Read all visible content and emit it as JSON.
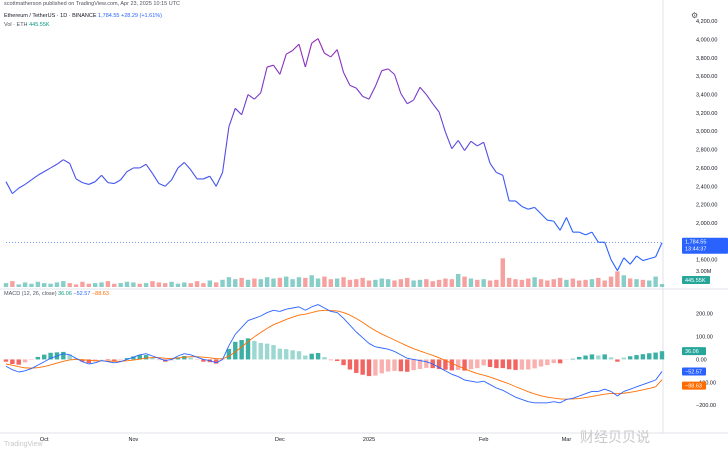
{
  "header": {
    "publisher": "scottmatherson published on TradingView.com, Apr 23, 2025 10:15 UTC",
    "symbol": "Ethereum / TetherUS · 1D · BINANCE",
    "last_price": "1,784.55",
    "change": "+28.29 (+1.61%)",
    "vol_label": "Vol · ETH",
    "vol_value": "445.55K",
    "macd_label": "MACD (12, 26, close)",
    "macd_hist": "36.06",
    "macd_line": "−52.57",
    "signal_line": "−88.63"
  },
  "badges": {
    "price": "1,784.55",
    "countdown": "13:44:37",
    "volume": "445.55K",
    "hist": "36.06",
    "macd": "−52.57",
    "signal": "−88.63",
    "vol_tick": "3.00M"
  },
  "watermark": "财经贝贝说",
  "logo_text": "TradingView",
  "colors": {
    "price_up": "#2962ff",
    "price_peak": "#9c27b0",
    "vol_up": "#26a69a",
    "vol_down": "#ef5350",
    "macd": "#2962ff",
    "signal": "#ff6d00",
    "hist_up": "#26a69a",
    "hist_down": "#ef5350"
  },
  "icons": {
    "settings": "gear-icon",
    "logo": "tradingview-logo-icon"
  },
  "chart_data": [
    {
      "type": "line",
      "title": "Ethereum / TetherUS · 1D · BINANCE",
      "x_labels": [
        "Oct",
        "Nov",
        "Dec",
        "2025",
        "Feb",
        "Mar"
      ],
      "y_ticks": [
        1600,
        1800,
        2000,
        2200,
        2400,
        2600,
        2800,
        3000,
        3200,
        3400,
        3600,
        3800,
        4000,
        4200
      ],
      "y_tick_labels": [
        "1,600.00",
        "1,800.00",
        "2,000.00",
        "2,200.00",
        "2,400.00",
        "2,600.00",
        "2,800.00",
        "3,000.00",
        "3,200.00",
        "3,400.00",
        "3,600.00",
        "3,800.00",
        "4,000.00",
        "4,200.00"
      ],
      "ylim": [
        1400,
        4300
      ],
      "close": [
        2450,
        2320,
        2380,
        2420,
        2470,
        2520,
        2560,
        2600,
        2640,
        2690,
        2650,
        2480,
        2440,
        2420,
        2450,
        2520,
        2440,
        2430,
        2470,
        2560,
        2600,
        2600,
        2640,
        2540,
        2430,
        2400,
        2470,
        2600,
        2660,
        2580,
        2480,
        2480,
        2510,
        2400,
        2550,
        3050,
        3250,
        3180,
        3400,
        3350,
        3420,
        3700,
        3720,
        3620,
        3840,
        3880,
        3950,
        3700,
        3960,
        4010,
        3850,
        3810,
        3890,
        3640,
        3500,
        3470,
        3380,
        3350,
        3490,
        3660,
        3680,
        3620,
        3410,
        3300,
        3340,
        3480,
        3400,
        3300,
        3210,
        2990,
        2810,
        2900,
        2790,
        2890,
        2840,
        2880,
        2650,
        2550,
        2520,
        2240,
        2240,
        2180,
        2150,
        2170,
        2100,
        2030,
        2020,
        1920,
        2060,
        1900,
        1900,
        1870,
        1900,
        1790,
        1790,
        1600,
        1480,
        1620,
        1550,
        1640,
        1590,
        1610,
        1630,
        1784.55
      ],
      "last_price": 1784.55
    },
    {
      "type": "bar",
      "title": "Vol · ETH",
      "y_tick_labels": [
        "3.00M"
      ],
      "last_value": "445.55K",
      "volume_m": [
        0.6,
        0.9,
        0.4,
        0.7,
        0.5,
        0.8,
        0.6,
        0.5,
        0.7,
        0.9,
        0.6,
        0.4,
        0.8,
        0.5,
        0.6,
        0.7,
        0.9,
        0.5,
        0.6,
        0.8,
        0.7,
        0.5,
        0.6,
        0.9,
        0.7,
        0.6,
        0.8,
        0.5,
        0.7,
        0.6,
        0.9,
        0.6,
        1.0,
        0.7,
        1.1,
        1.5,
        1.2,
        1.4,
        1.1,
        1.3,
        1.2,
        1.5,
        1.3,
        1.4,
        1.6,
        1.2,
        1.5,
        1.4,
        1.8,
        1.3,
        1.6,
        1.2,
        1.3,
        1.5,
        1.1,
        1.2,
        1.4,
        1.0,
        1.1,
        1.3,
        1.2,
        1.0,
        1.2,
        1.4,
        1.0,
        1.1,
        1.2,
        0.9,
        1.1,
        1.3,
        1.2,
        2.0,
        1.6,
        1.3,
        1.1,
        1.2,
        1.0,
        1.1,
        4.4,
        1.4,
        1.2,
        1.1,
        1.3,
        1.5,
        1.2,
        1.0,
        1.2,
        1.4,
        1.1,
        1.3,
        1.0,
        1.1,
        1.2,
        1.4,
        1.0,
        1.6,
        2.4,
        1.8,
        1.3,
        1.2,
        1.1,
        1.0,
        1.6,
        0.45
      ],
      "up": [
        1,
        0,
        1,
        1,
        1,
        1,
        1,
        1,
        1,
        1,
        0,
        0,
        0,
        0,
        1,
        1,
        0,
        0,
        1,
        1,
        1,
        0,
        1,
        0,
        0,
        0,
        1,
        1,
        1,
        0,
        0,
        0,
        1,
        0,
        1,
        1,
        1,
        0,
        1,
        0,
        1,
        1,
        1,
        0,
        1,
        1,
        1,
        0,
        1,
        1,
        0,
        0,
        1,
        0,
        0,
        0,
        0,
        0,
        1,
        1,
        1,
        0,
        0,
        0,
        1,
        1,
        0,
        0,
        0,
        0,
        0,
        1,
        0,
        1,
        0,
        1,
        0,
        0,
        0,
        0,
        0,
        0,
        0,
        1,
        0,
        0,
        0,
        0,
        1,
        0,
        0,
        0,
        1,
        0,
        0,
        0,
        0,
        1,
        0,
        1,
        0,
        1,
        1,
        1
      ]
    },
    {
      "type": "line",
      "title": "MACD (12, 26, close)",
      "y_ticks": [
        -200,
        -100,
        0,
        100,
        200
      ],
      "y_tick_labels": [
        "−200.00",
        "−100.00",
        "0.00",
        "100.00",
        "200.00"
      ],
      "ylim": [
        -300,
        260
      ],
      "series": [
        {
          "name": "MACD",
          "values": [
            -30,
            -45,
            -55,
            -50,
            -40,
            -25,
            -10,
            5,
            15,
            25,
            20,
            5,
            -10,
            -20,
            -15,
            -5,
            -10,
            -15,
            -10,
            0,
            10,
            20,
            25,
            15,
            5,
            -5,
            0,
            15,
            25,
            20,
            10,
            0,
            -5,
            -15,
            0,
            60,
            110,
            140,
            170,
            180,
            190,
            205,
            215,
            210,
            220,
            225,
            230,
            215,
            230,
            240,
            225,
            210,
            205,
            180,
            150,
            120,
            95,
            70,
            55,
            50,
            45,
            35,
            20,
            5,
            0,
            -5,
            -10,
            -20,
            -35,
            -50,
            -65,
            -75,
            -90,
            -95,
            -100,
            -95,
            -110,
            -125,
            -135,
            -150,
            -165,
            -175,
            -185,
            -190,
            -190,
            -190,
            -185,
            -190,
            -175,
            -170,
            -160,
            -150,
            -140,
            -140,
            -130,
            -140,
            -160,
            -140,
            -130,
            -120,
            -110,
            -100,
            -90,
            -52.57
          ]
        },
        {
          "name": "Signal",
          "values": [
            -20,
            -25,
            -32,
            -37,
            -38,
            -36,
            -31,
            -24,
            -16,
            -8,
            -2,
            0,
            -1,
            -4,
            -6,
            -6,
            -7,
            -8,
            -8,
            -6,
            -3,
            1,
            6,
            8,
            8,
            5,
            4,
            6,
            10,
            12,
            12,
            10,
            7,
            3,
            3,
            14,
            33,
            55,
            78,
            99,
            118,
            136,
            152,
            163,
            175,
            185,
            194,
            198,
            205,
            212,
            215,
            214,
            212,
            205,
            194,
            179,
            162,
            143,
            126,
            111,
            98,
            85,
            72,
            59,
            47,
            37,
            27,
            18,
            7,
            -5,
            -17,
            -29,
            -41,
            -52,
            -62,
            -69,
            -77,
            -87,
            -97,
            -107,
            -119,
            -130,
            -141,
            -151,
            -159,
            -165,
            -169,
            -173,
            -174,
            -173,
            -171,
            -167,
            -162,
            -157,
            -152,
            -149,
            -150,
            -148,
            -144,
            -139,
            -133,
            -127,
            -120,
            -88.63
          ]
        },
        {
          "name": "Histogram",
          "values": [
            -10,
            -20,
            -23,
            -13,
            -2,
            11,
            21,
            29,
            31,
            33,
            22,
            5,
            -9,
            -16,
            -9,
            1,
            -3,
            -7,
            -2,
            6,
            13,
            19,
            19,
            7,
            -3,
            -10,
            -4,
            9,
            15,
            8,
            -2,
            -10,
            -12,
            -18,
            -3,
            46,
            77,
            85,
            92,
            81,
            72,
            69,
            63,
            47,
            45,
            40,
            36,
            17,
            25,
            28,
            10,
            -4,
            -7,
            -25,
            -44,
            -59,
            -67,
            -73,
            -71,
            -61,
            -53,
            -50,
            -52,
            -54,
            -47,
            -42,
            -37,
            -38,
            -42,
            -45,
            -48,
            -46,
            -49,
            -43,
            -38,
            -26,
            -33,
            -38,
            -38,
            -43,
            -46,
            -45,
            -44,
            -39,
            -31,
            -25,
            -16,
            -17,
            -1,
            3,
            11,
            17,
            22,
            17,
            22,
            9,
            -10,
            8,
            14,
            19,
            23,
            27,
            30,
            36.06
          ]
        }
      ]
    }
  ]
}
